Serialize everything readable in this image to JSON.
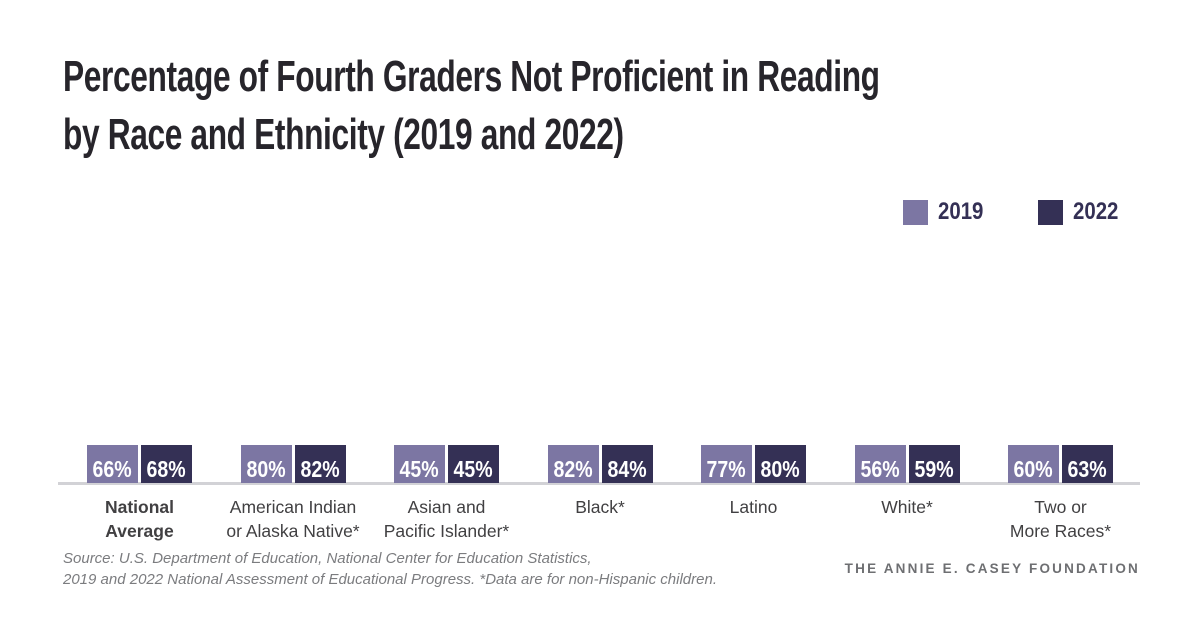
{
  "title": {
    "line1": "Percentage of Fourth Graders Not Proficient in Reading",
    "line2": "by Race and Ethnicity (2019 and 2022)"
  },
  "legend": {
    "items": [
      {
        "label": "2019",
        "color": "#7c76a3"
      },
      {
        "label": "2022",
        "color": "#343055"
      }
    ]
  },
  "chart_data": {
    "type": "bar",
    "title": "Percentage of Fourth Graders Not Proficient in Reading by Race and Ethnicity (2019 and 2022)",
    "categories": [
      {
        "lines": [
          "National",
          "Average"
        ],
        "bold": true
      },
      {
        "lines": [
          "American Indian",
          "or Alaska Native*"
        ],
        "bold": false
      },
      {
        "lines": [
          "Asian and",
          "Pacific Islander*"
        ],
        "bold": false
      },
      {
        "lines": [
          "Black*"
        ],
        "bold": false
      },
      {
        "lines": [
          "Latino"
        ],
        "bold": false
      },
      {
        "lines": [
          "White*"
        ],
        "bold": false
      },
      {
        "lines": [
          "Two or",
          "More Races*"
        ],
        "bold": false
      }
    ],
    "series": [
      {
        "name": "2019",
        "color": "#7c76a3",
        "values": [
          66,
          80,
          45,
          82,
          77,
          56,
          60
        ]
      },
      {
        "name": "2022",
        "color": "#343055",
        "values": [
          68,
          82,
          45,
          84,
          80,
          59,
          63
        ]
      }
    ],
    "value_suffix": "%",
    "xlabel": "",
    "ylabel": "",
    "ylim": [
      0,
      100
    ],
    "grid": false,
    "y_axis_visible": false,
    "legend_position": "top-right",
    "bar_label_position": "inside-top",
    "bar_label_color": "#ffffff"
  },
  "source": {
    "line1": "Source: U.S. Department of Education, National Center for Education Statistics,",
    "line2": "2019 and 2022 National Assessment of Educational Progress. *Data are for non-Hispanic children."
  },
  "footer": {
    "brand": "THE ANNIE E. CASEY FOUNDATION"
  }
}
